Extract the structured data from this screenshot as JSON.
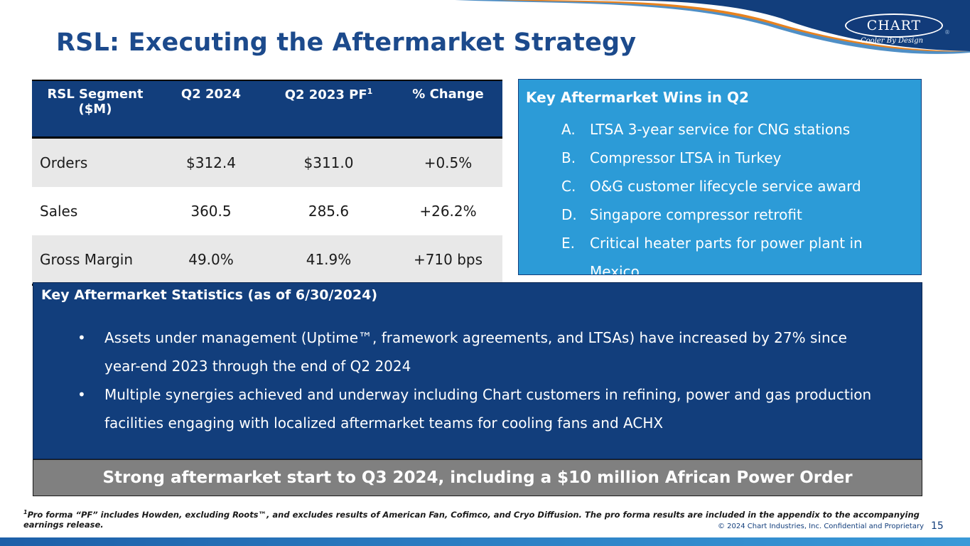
{
  "brand": {
    "logo_text": "CHART",
    "tagline": "Cooler By Design",
    "colors": {
      "navy": "#123e7c",
      "title_blue": "#1c4a8c",
      "light_blue": "#2c9bd7",
      "orange": "#e8821e",
      "gray": "#808080"
    }
  },
  "page_title": "RSL: Executing the Aftermarket Strategy",
  "table": {
    "headers": {
      "segment": "RSL Segment ($M)",
      "q2_2024": "Q2 2024",
      "q2_2023_pf": "Q2 2023 PF",
      "q2_2023_pf_sup": "1",
      "change": "% Change"
    },
    "rows": [
      {
        "label": "Orders",
        "q2_2024": "$312.4",
        "q2_2023": "$311.0",
        "change": "+0.5%"
      },
      {
        "label": "Sales",
        "q2_2024": "360.5",
        "q2_2023": "285.6",
        "change": "+26.2%"
      },
      {
        "label": "Gross Margin",
        "q2_2024": "49.0%",
        "q2_2023": "41.9%",
        "change": "+710 bps"
      }
    ]
  },
  "wins": {
    "title": "Key Aftermarket Wins in Q2",
    "items": [
      {
        "letter": "A.",
        "text": "LTSA 3-year service for CNG stations"
      },
      {
        "letter": "B.",
        "text": "Compressor LTSA in Turkey"
      },
      {
        "letter": "C.",
        "text": "O&G customer lifecycle service award"
      },
      {
        "letter": "D.",
        "text": "Singapore compressor retrofit"
      },
      {
        "letter": "E.",
        "text": "Critical heater parts for power plant in Mexico"
      }
    ]
  },
  "stats": {
    "title": "Key Aftermarket Statistics (as of 6/30/2024)",
    "bullet_symbol": "•",
    "bullets": [
      "Assets under management (Uptime™, framework agreements, and LTSAs) have increased by 27% since year-end 2023 through the end of Q2 2024",
      "Multiple synergies achieved and underway including Chart customers in refining, power and gas production facilities engaging with localized aftermarket teams for cooling fans and ACHX"
    ]
  },
  "banner": "Strong aftermarket start to Q3 2024, including a $10 million African Power Order",
  "footnote": {
    "sup": "1",
    "text": "Pro forma “PF” includes Howden, excluding Roots™, and excludes results of American Fan, Cofimco, and Cryo Diffusion. The pro forma results are included in the appendix to the accompanying earnings release."
  },
  "copyright": "© 2024 Chart Industries, Inc. Confidential and Proprietary",
  "page_number": "15"
}
